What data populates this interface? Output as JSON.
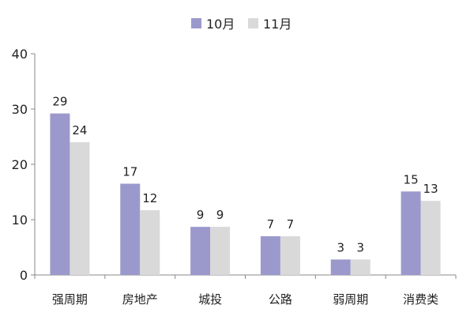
{
  "chart_data": {
    "type": "bar",
    "title": "",
    "xlabel": "",
    "ylabel": "",
    "categories": [
      "强周期",
      "房地产",
      "城投",
      "公路",
      "弱周期",
      "消费类"
    ],
    "series": [
      {
        "name": "10月",
        "values": [
          29,
          17,
          9,
          7,
          3,
          15
        ],
        "color": "#9b99cc"
      },
      {
        "name": "11月",
        "values": [
          24,
          12,
          9,
          7,
          3,
          13
        ],
        "color": "#d9d9d9"
      }
    ],
    "bar_values": [
      [
        29.2,
        16.5,
        8.7,
        7.0,
        2.8,
        15.1
      ],
      [
        24.0,
        11.7,
        8.7,
        7.0,
        2.8,
        13.4
      ]
    ],
    "ylim": [
      0,
      40
    ],
    "yticks": [
      "0",
      "10",
      "20",
      "30",
      "40"
    ],
    "grid": false,
    "legend": "top-center"
  }
}
